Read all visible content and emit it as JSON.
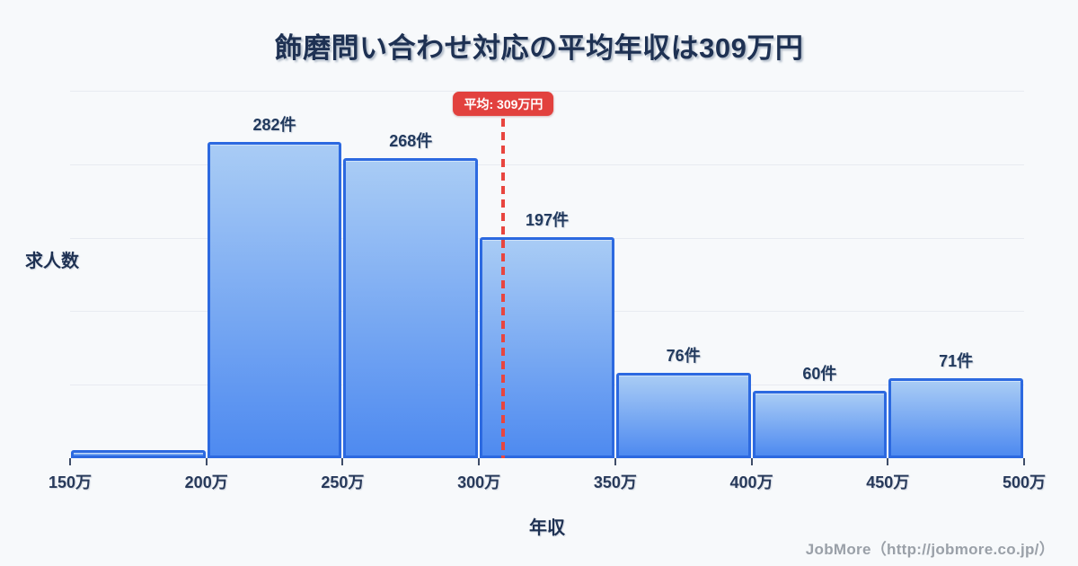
{
  "title": "飾磨問い合わせ対応の平均年収は309万円",
  "average_badge": {
    "label": "平均: 309万円"
  },
  "axes": {
    "y_label": "求人数",
    "x_label": "年収",
    "x_ticks": [
      "150万",
      "200万",
      "250万",
      "300万",
      "350万",
      "400万",
      "450万",
      "500万"
    ]
  },
  "footer": {
    "credit": "JobMore（http://jobmore.co.jp/）"
  },
  "chart_data": {
    "type": "bar",
    "title": "飾磨問い合わせ対応の平均年収は309万円",
    "xlabel": "年収",
    "ylabel": "求人数",
    "categories": [
      "150万-200万",
      "200万-250万",
      "250万-300万",
      "300万-350万",
      "350万-400万",
      "400万-450万",
      "450万-500万"
    ],
    "values": [
      7,
      282,
      268,
      197,
      76,
      60,
      71
    ],
    "bar_labels": [
      "",
      "282件",
      "268件",
      "197件",
      "76件",
      "60件",
      "71件"
    ],
    "x_range": [
      150,
      500
    ],
    "x_tick_step": 50,
    "ylim": [
      0,
      328
    ],
    "gridline_count": 5,
    "grid_on": true,
    "average_value": 309,
    "average_label": "平均: 309万円",
    "legend": "none",
    "colors": {
      "bar_fill_top": "#a9ccf5",
      "bar_fill_bottom": "#4e8af0",
      "bar_border": "#2c69e0",
      "average_line": "#e8453f",
      "badge_bg": "#e2413e",
      "badge_text": "#ffffff",
      "grid": "#e8ebf1",
      "background": "#f7f9fb",
      "text_navy": "#1e3153",
      "footer_gray": "#9aa0a8"
    }
  }
}
